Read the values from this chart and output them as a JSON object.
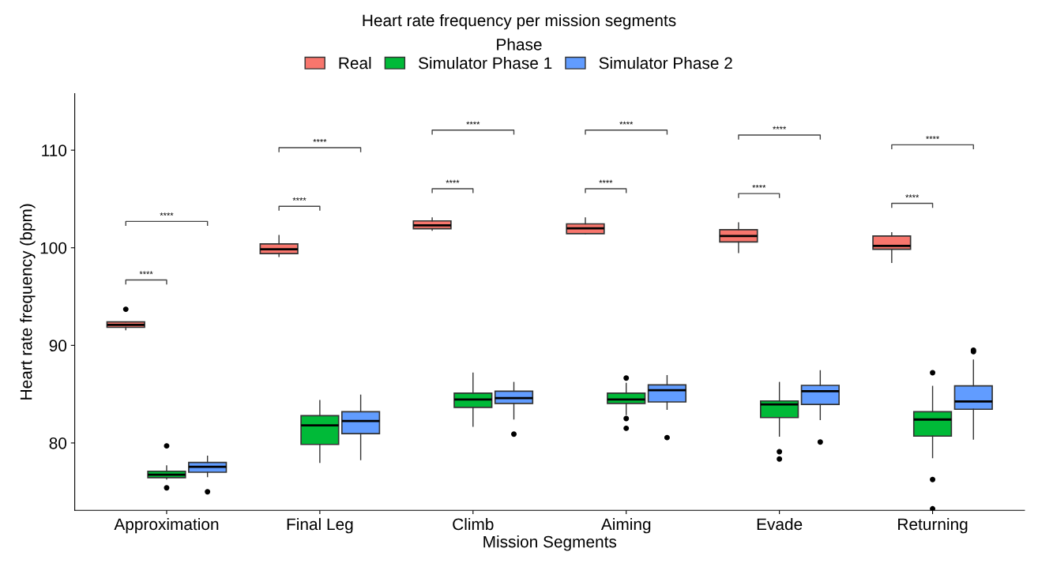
{
  "chart_data": {
    "type": "box",
    "title": "Heart rate frequency per mission segments",
    "xlabel": "Mission Segments",
    "ylabel": "Heart rate frequency (bpm)",
    "legend_title": "Phase",
    "legend": "top",
    "categories": [
      "Approximation",
      "Final Leg",
      "Climb",
      "Aiming",
      "Evade",
      "Returning"
    ],
    "ylim": [
      73.1,
      115.8
    ],
    "yticks": [
      80,
      90,
      100,
      110
    ],
    "grid": false,
    "series": [
      {
        "name": "Real",
        "color": "#f8766d",
        "boxes": [
          {
            "low": 91.6,
            "q1": 91.85,
            "median": 92.1,
            "q3": 92.4,
            "high": 92.4,
            "outliers": [
              93.7
            ]
          },
          {
            "low": 99.1,
            "q1": 99.4,
            "median": 99.85,
            "q3": 100.4,
            "high": 101.25
          },
          {
            "low": 101.8,
            "q1": 101.95,
            "median": 102.3,
            "q3": 102.75,
            "high": 103.05
          },
          {
            "low": 101.45,
            "q1": 101.45,
            "median": 102.0,
            "q3": 102.45,
            "high": 103.05
          },
          {
            "low": 99.5,
            "q1": 100.6,
            "median": 101.2,
            "q3": 101.85,
            "high": 102.55
          },
          {
            "low": 98.5,
            "q1": 99.85,
            "median": 100.2,
            "q3": 101.2,
            "high": 101.55
          }
        ]
      },
      {
        "name": "Simulator Phase 1",
        "color": "#00ba38",
        "boxes": [
          {
            "low": 76.3,
            "q1": 76.45,
            "median": 76.75,
            "q3": 77.1,
            "high": 77.65,
            "outliers": [
              79.7,
              75.4
            ]
          },
          {
            "low": 78.0,
            "q1": 79.85,
            "median": 81.8,
            "q3": 82.8,
            "high": 84.35
          },
          {
            "low": 81.7,
            "q1": 83.65,
            "median": 84.45,
            "q3": 85.1,
            "high": 87.15
          },
          {
            "low": 82.9,
            "q1": 84.05,
            "median": 84.45,
            "q3": 85.1,
            "high": 86.1,
            "outliers": [
              86.65,
              82.5,
              81.5
            ]
          },
          {
            "low": 80.7,
            "q1": 82.6,
            "median": 83.95,
            "q3": 84.3,
            "high": 86.2,
            "outliers": [
              79.1,
              78.35
            ]
          },
          {
            "low": 78.5,
            "q1": 80.7,
            "median": 82.4,
            "q3": 83.2,
            "high": 85.8,
            "outliers": [
              87.2,
              76.25,
              73.25
            ]
          }
        ]
      },
      {
        "name": "Simulator Phase 2",
        "color": "#619cff",
        "boxes": [
          {
            "low": 76.55,
            "q1": 77.0,
            "median": 77.55,
            "q3": 78.0,
            "high": 78.65,
            "outliers": [
              75.0
            ]
          },
          {
            "low": 78.3,
            "q1": 80.95,
            "median": 82.25,
            "q3": 83.2,
            "high": 84.9
          },
          {
            "low": 82.45,
            "q1": 84.05,
            "median": 84.6,
            "q3": 85.3,
            "high": 86.2,
            "outliers": [
              80.9
            ]
          },
          {
            "low": 83.45,
            "q1": 84.2,
            "median": 85.4,
            "q3": 85.95,
            "high": 86.9,
            "outliers": [
              80.55
            ]
          },
          {
            "low": 82.4,
            "q1": 83.95,
            "median": 85.3,
            "q3": 85.9,
            "high": 87.4,
            "outliers": [
              80.1
            ]
          },
          {
            "low": 80.4,
            "q1": 83.45,
            "median": 84.25,
            "q3": 85.85,
            "high": 88.5,
            "outliers": [
              89.35,
              89.5
            ]
          }
        ]
      }
    ],
    "annotations": [
      "****",
      "****",
      "****",
      "****",
      "****",
      "****",
      "****",
      "****",
      "****",
      "****",
      "****",
      "****"
    ]
  }
}
